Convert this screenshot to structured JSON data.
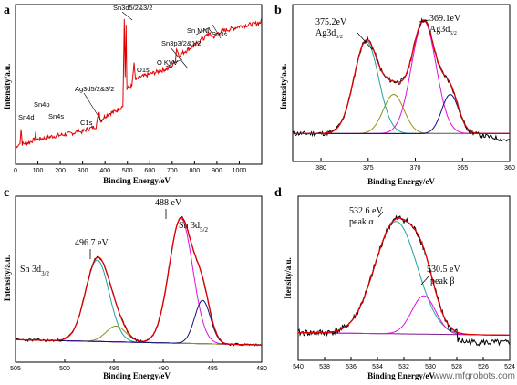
{
  "watermark": "www.mfgrobots.com",
  "colors": {
    "data": "#e00000",
    "raw": "#000000",
    "envelope": "#e00000",
    "cyan": "#20a0a0",
    "olive": "#909010",
    "magenta": "#e010e0",
    "navy": "#101080",
    "purple": "#7a1a8c",
    "background": "#000000"
  },
  "chart_data": [
    {
      "id": "a",
      "type": "line",
      "panel_label": "a",
      "xlabel": "Binding Energy/eV",
      "ylabel": "Intensity/a.u.",
      "xlim": [
        0,
        1100
      ],
      "xticks": [
        0,
        100,
        200,
        300,
        400,
        500,
        600,
        700,
        800,
        900,
        1000
      ],
      "series": [
        {
          "color": "red",
          "points": [
            [
              0,
              12
            ],
            [
              10,
              13
            ],
            [
              20,
              14
            ],
            [
              25,
              24
            ],
            [
              30,
              14
            ],
            [
              60,
              15
            ],
            [
              85,
              17
            ],
            [
              90,
              21
            ],
            [
              95,
              17
            ],
            [
              130,
              18
            ],
            [
              160,
              19
            ],
            [
              200,
              20
            ],
            [
              240,
              21
            ],
            [
              270,
              22
            ],
            [
              283,
              24
            ],
            [
              290,
              22
            ],
            [
              320,
              24
            ],
            [
              360,
              26
            ],
            [
              368,
              32
            ],
            [
              374,
              36
            ],
            [
              380,
              30
            ],
            [
              400,
              33
            ],
            [
              420,
              35
            ],
            [
              440,
              36
            ],
            [
              460,
              38
            ],
            [
              480,
              40
            ],
            [
              486,
              100
            ],
            [
              490,
              60
            ],
            [
              494,
              96
            ],
            [
              498,
              52
            ],
            [
              520,
              54
            ],
            [
              530,
              70
            ],
            [
              536,
              58
            ],
            [
              560,
              60
            ],
            [
              600,
              62
            ],
            [
              640,
              64
            ],
            [
              680,
              66
            ],
            [
              700,
              68
            ],
            [
              715,
              72
            ],
            [
              720,
              80
            ],
            [
              730,
              75
            ],
            [
              760,
              78
            ],
            [
              780,
              80
            ],
            [
              800,
              82
            ],
            [
              820,
              84
            ],
            [
              830,
              86
            ],
            [
              836,
              88
            ],
            [
              840,
              86
            ],
            [
              860,
              90
            ],
            [
              880,
              88
            ],
            [
              890,
              88
            ],
            [
              900,
              90
            ],
            [
              930,
              92
            ],
            [
              960,
              93
            ],
            [
              1000,
              95
            ],
            [
              1040,
              96
            ],
            [
              1080,
              97
            ],
            [
              1100,
              98
            ]
          ]
        }
      ],
      "annotations": [
        {
          "text": "Sn4d",
          "x": 25,
          "y": 24
        },
        {
          "text": "Sn4p",
          "x": 90,
          "y": 21
        },
        {
          "text": "Sn4s",
          "x": 130,
          "y": 18
        },
        {
          "text": "C1s",
          "x": 283,
          "y": 24
        },
        {
          "text": "Ag3d5/2&3/2",
          "x": 370,
          "y": 33
        },
        {
          "text": "Sn3d5/2&3/2",
          "x": 490,
          "y": 100
        },
        {
          "text": "O KVV",
          "x": 690,
          "y": 68
        },
        {
          "text": "O1s",
          "x": 530,
          "y": 70
        },
        {
          "text": "Sn3p3/2&1/2",
          "x": 718,
          "y": 80
        },
        {
          "text": "Sn MNN",
          "x": 830,
          "y": 86
        },
        {
          "text": "Sn3s",
          "x": 885,
          "y": 88
        }
      ]
    },
    {
      "id": "b",
      "type": "line",
      "panel_label": "b",
      "xlabel": "Binding Energy/eV",
      "ylabel": "Intensity/a.u.",
      "xlim": [
        383,
        360
      ],
      "xticks": [
        380,
        375,
        370,
        365,
        360
      ],
      "annotations": [
        {
          "text": "375.2eV",
          "x": 375.2
        },
        {
          "text": "Ag3d",
          "sub": "3/2",
          "x": 375.2
        },
        {
          "text": "369.1eV",
          "x": 369.1
        },
        {
          "text": "Ag3d",
          "sub": "5/2",
          "x": 369.1
        }
      ],
      "peaks": [
        {
          "color": "cyan",
          "center": 375.2,
          "height": 0.78,
          "width": 1.3
        },
        {
          "color": "olive",
          "center": 372.3,
          "height": 0.33,
          "width": 1.1
        },
        {
          "color": "magenta",
          "center": 369.1,
          "height": 0.95,
          "width": 1.3
        },
        {
          "color": "navy",
          "center": 366.3,
          "height": 0.33,
          "width": 0.9
        }
      ],
      "baseline": {
        "from": 0.02,
        "to": 0.02
      }
    },
    {
      "id": "c",
      "type": "line",
      "panel_label": "c",
      "xlabel": "Binding Energy/eV",
      "ylabel": "Intensity/a.u.",
      "xlim": [
        505,
        480
      ],
      "xticks": [
        505,
        500,
        495,
        490,
        485,
        480
      ],
      "annotations": [
        {
          "text": "488 eV",
          "x": 488
        },
        {
          "text": "Sn 3d",
          "sub": "5/2",
          "x": 488
        },
        {
          "text": "496.7 eV",
          "x": 496.7
        },
        {
          "text": "Sn 3d",
          "sub": "3/2",
          "x": 496.7
        }
      ],
      "peaks": [
        {
          "color": "cyan",
          "center": 496.7,
          "height": 0.62,
          "width": 1.2
        },
        {
          "color": "olive",
          "center": 494.8,
          "height": 0.12,
          "width": 1.0
        },
        {
          "color": "magenta",
          "center": 488.2,
          "height": 0.95,
          "width": 1.2
        },
        {
          "color": "navy",
          "center": 486.0,
          "height": 0.33,
          "width": 0.8
        }
      ],
      "baseline": {
        "from": 0.06,
        "to": 0.02
      }
    },
    {
      "id": "d",
      "type": "line",
      "panel_label": "d",
      "xlabel": "Binding Energy/eV",
      "ylabel": "Itensity/a.u.",
      "xlim": [
        540,
        524
      ],
      "xticks": [
        540,
        538,
        536,
        534,
        532,
        530,
        528,
        526,
        524
      ],
      "annotations": [
        {
          "text": "532.6 eV",
          "x": 532.6
        },
        {
          "text": "peak α",
          "x": 532.6
        },
        {
          "text": "530.5 eV",
          "x": 530.5
        },
        {
          "text": "peak β",
          "x": 530.5
        }
      ],
      "peaks": [
        {
          "color": "cyan",
          "center": 532.6,
          "height": 0.88,
          "width": 1.6
        },
        {
          "color": "magenta",
          "center": 530.5,
          "height": 0.3,
          "width": 0.9
        }
      ],
      "baseline": {
        "from": 0.06,
        "to": 0.04
      }
    }
  ]
}
